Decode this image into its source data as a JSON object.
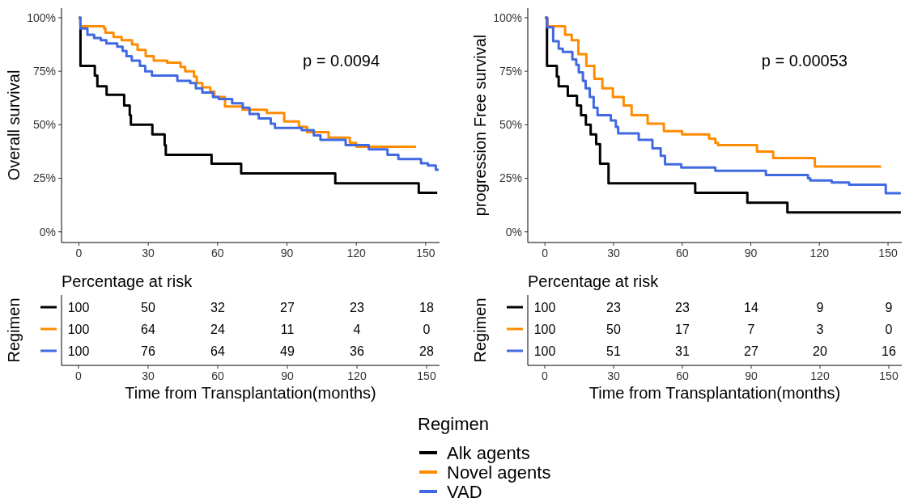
{
  "chart_data": [
    {
      "type": "step",
      "ylabel": "Overall survival",
      "xlim": [
        -7.5,
        156
      ],
      "xticks": [
        0,
        30,
        60,
        90,
        120,
        150
      ],
      "ylim": [
        -5,
        104.5
      ],
      "yticks": [
        {
          "value": 0,
          "label": "0%"
        },
        {
          "value": 25,
          "label": "25%"
        },
        {
          "value": 50,
          "label": "50%"
        },
        {
          "value": 75,
          "label": "75%"
        },
        {
          "value": 100,
          "label": "100%"
        }
      ],
      "annotations": [
        "p = 0.0094"
      ],
      "legend": "bottom",
      "legend_title": "Regimen",
      "series": [
        {
          "name": "Alk agents",
          "color": "#000000",
          "x": [
            0,
            0.7,
            6.9,
            8,
            12,
            19.6,
            22,
            22.5,
            31.8,
            37.1,
            37.6,
            57.4,
            70.2,
            110.9,
            147,
            155
          ],
          "values": [
            100,
            77.5,
            73,
            68,
            64,
            59,
            54.5,
            50,
            45.5,
            40.5,
            36,
            31.8,
            27.3,
            22.7,
            18.2,
            18.2
          ]
        },
        {
          "name": "Novel agents",
          "color": "#ff8c00",
          "x": [
            0,
            0.7,
            10.9,
            11.5,
            15,
            18.5,
            23,
            25.4,
            28.9,
            32.4,
            38.2,
            44,
            46,
            49.8,
            51,
            53.4,
            56.8,
            58.6,
            63.2,
            70.8,
            81.3,
            88.8,
            95.2,
            98.7,
            108,
            117.2,
            120,
            145.8
          ],
          "values": [
            100,
            96,
            95,
            93,
            91,
            89.5,
            87.5,
            85,
            82,
            80,
            79,
            77,
            75,
            72.5,
            69.5,
            67.5,
            65.5,
            63,
            58.5,
            57,
            55.5,
            51.5,
            49,
            46.5,
            44,
            41.5,
            39.7,
            39.7
          ]
        },
        {
          "name": "VAD",
          "color": "#4169e1",
          "x": [
            0,
            0.7,
            3.7,
            6.6,
            9.5,
            11.9,
            16.6,
            18.9,
            20.6,
            22.9,
            26.4,
            28.7,
            31.6,
            42.6,
            48.2,
            50.6,
            53.4,
            58,
            60.5,
            66.3,
            70.9,
            73.8,
            77.8,
            83,
            84.8,
            96.4,
            101.6,
            104.5,
            115.4,
            125.4,
            133.5,
            138.2,
            148,
            151,
            154.4,
            155.6
          ],
          "values": [
            100,
            95,
            92,
            90.5,
            89.5,
            88,
            86.5,
            84.5,
            82,
            80,
            77.5,
            75,
            73,
            70.5,
            69.5,
            67,
            65,
            63,
            62,
            60,
            58,
            55,
            53,
            50.5,
            48.5,
            47.5,
            45,
            43,
            40.5,
            38.5,
            36,
            34,
            32,
            31,
            29,
            29
          ]
        }
      ]
    },
    {
      "type": "step",
      "ylabel": "progression Free survival",
      "xlim": [
        -7.5,
        156
      ],
      "xticks": [
        0,
        30,
        60,
        90,
        120,
        150
      ],
      "ylim": [
        -5,
        104.5
      ],
      "yticks": [
        {
          "value": 0,
          "label": "0%"
        },
        {
          "value": 25,
          "label": "25%"
        },
        {
          "value": 50,
          "label": "50%"
        },
        {
          "value": 75,
          "label": "75%"
        },
        {
          "value": 100,
          "label": "100%"
        }
      ],
      "annotations": [
        "p = 0.00053"
      ],
      "series": [
        {
          "color": "#000000",
          "x": [
            0,
            0.9,
            5.2,
            6,
            10,
            14,
            15.8,
            17.9,
            20,
            22.4,
            24.1,
            27.8,
            65.7,
            88.5,
            106,
            155.6
          ],
          "values": [
            100,
            77.5,
            72.5,
            68,
            63.5,
            59,
            54.5,
            50,
            45.5,
            41,
            31.8,
            22.7,
            18.2,
            13.6,
            9.1,
            9.1
          ]
        },
        {
          "color": "#ff8c00",
          "x": [
            0,
            1,
            8.8,
            11.7,
            14.6,
            18.1,
            21.6,
            25.1,
            29.7,
            34.4,
            37.9,
            44.9,
            52,
            60,
            71.8,
            74.5,
            75.7,
            92.7,
            99.8,
            118,
            147
          ],
          "values": [
            100,
            96,
            92,
            89.5,
            83,
            77.5,
            71.5,
            67,
            63,
            59,
            54.5,
            50.5,
            47,
            45.5,
            43.5,
            41.5,
            40.5,
            37.5,
            34.5,
            30.5,
            30.5
          ]
        },
        {
          "color": "#4169e1",
          "x": [
            0,
            1,
            3.6,
            6,
            7.8,
            12,
            13.7,
            14.8,
            16.6,
            17.8,
            19.6,
            21.3,
            23,
            28.8,
            31,
            32,
            41,
            47,
            50.6,
            52.5,
            59.6,
            74.5,
            96.6,
            115,
            116,
            125.4,
            133,
            149,
            155.6
          ],
          "values": [
            100,
            95.5,
            89,
            85.5,
            84,
            80.5,
            78,
            74.5,
            70.5,
            67,
            63,
            58,
            54.5,
            52,
            49,
            46,
            43,
            39,
            35.5,
            31.5,
            30,
            28.5,
            26.5,
            25,
            24,
            23,
            22,
            18,
            18
          ]
        }
      ]
    },
    {
      "type": "heatmap",
      "title": "Percentage at risk",
      "ylabel": "Regimen",
      "xlabel": "Time from Transplantation(months)",
      "categories": [
        "0",
        "30",
        "60",
        "90",
        "120",
        "150"
      ],
      "y_categories": [
        null,
        null,
        null
      ],
      "data_labels": true,
      "cells": [
        [
          100,
          50,
          32,
          27,
          23,
          18
        ],
        [
          100,
          64,
          24,
          11,
          4,
          0
        ],
        [
          100,
          76,
          64,
          49,
          36,
          28
        ]
      ]
    },
    {
      "type": "heatmap",
      "title": "Percentage at risk",
      "ylabel": "Regimen",
      "xlabel": "Time from Transplantation(months)",
      "categories": [
        "0",
        "30",
        "60",
        "90",
        "120",
        "150"
      ],
      "y_categories": [
        null,
        null,
        null
      ],
      "data_labels": true,
      "cells": [
        [
          100,
          23,
          23,
          14,
          9,
          9
        ],
        [
          100,
          50,
          17,
          7,
          3,
          0
        ],
        [
          100,
          51,
          31,
          27,
          20,
          16
        ]
      ]
    }
  ]
}
